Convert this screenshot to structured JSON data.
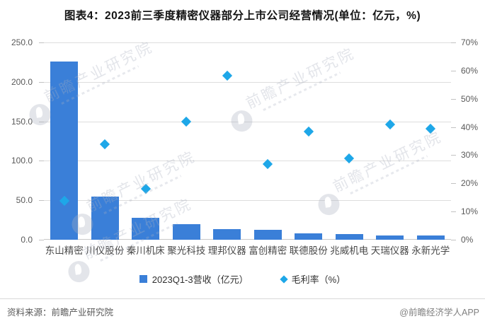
{
  "title": "图表4：2023前三季度精密仪器部分上市公司经营情况(单位：亿元，%)",
  "chart_data": {
    "type": "bar",
    "title": "图表4：2023前三季度精密仪器部分上市公司经营情况(单位：亿元，%)",
    "categories": [
      "东山精密",
      "川仪股份",
      "秦川机床",
      "聚光科技",
      "理邦仪器",
      "富创精密",
      "联德股份",
      "兆威机电",
      "天瑞仪器",
      "永新光学"
    ],
    "series": [
      {
        "name": "2023Q1-3营收（亿元）",
        "type": "bar",
        "axis": "left",
        "values": [
          225.5,
          54.4,
          28.0,
          19.4,
          13.2,
          12.5,
          8.1,
          7.4,
          5.4,
          5.6
        ]
      },
      {
        "name": "毛利率（%）",
        "type": "scatter",
        "axis": "right",
        "values": [
          13.7,
          34.0,
          18.0,
          41.8,
          58.1,
          26.9,
          38.4,
          28.9,
          40.9,
          39.5
        ]
      }
    ],
    "left_axis": {
      "min": 0,
      "max": 250,
      "step": 50,
      "ticks": [
        "250.0",
        "200.0",
        "150.0",
        "100.0",
        "50.0",
        "0.0"
      ]
    },
    "right_axis": {
      "min": 0,
      "max": 70,
      "step": 10,
      "ticks": [
        "70%",
        "60%",
        "50%",
        "40%",
        "30%",
        "20%",
        "10%",
        "0%"
      ]
    },
    "grid": true,
    "legend_position": "bottom"
  },
  "legend": {
    "items": [
      {
        "label": "2023Q1-3营收（亿元）",
        "marker": "square"
      },
      {
        "label": "毛利率（%）",
        "marker": "diamond"
      }
    ]
  },
  "watermark": {
    "text": "前瞻产业研究院"
  },
  "footer": {
    "source": "资料来源：前瞻产业研究院",
    "credit": "@前瞻经济学人APP"
  },
  "colors": {
    "bar": "#3A7FD8",
    "scatter": "#1EA7E8",
    "grid": "#DDDDDD",
    "baseline": "#C9C9C9",
    "axis_text": "#595959"
  }
}
